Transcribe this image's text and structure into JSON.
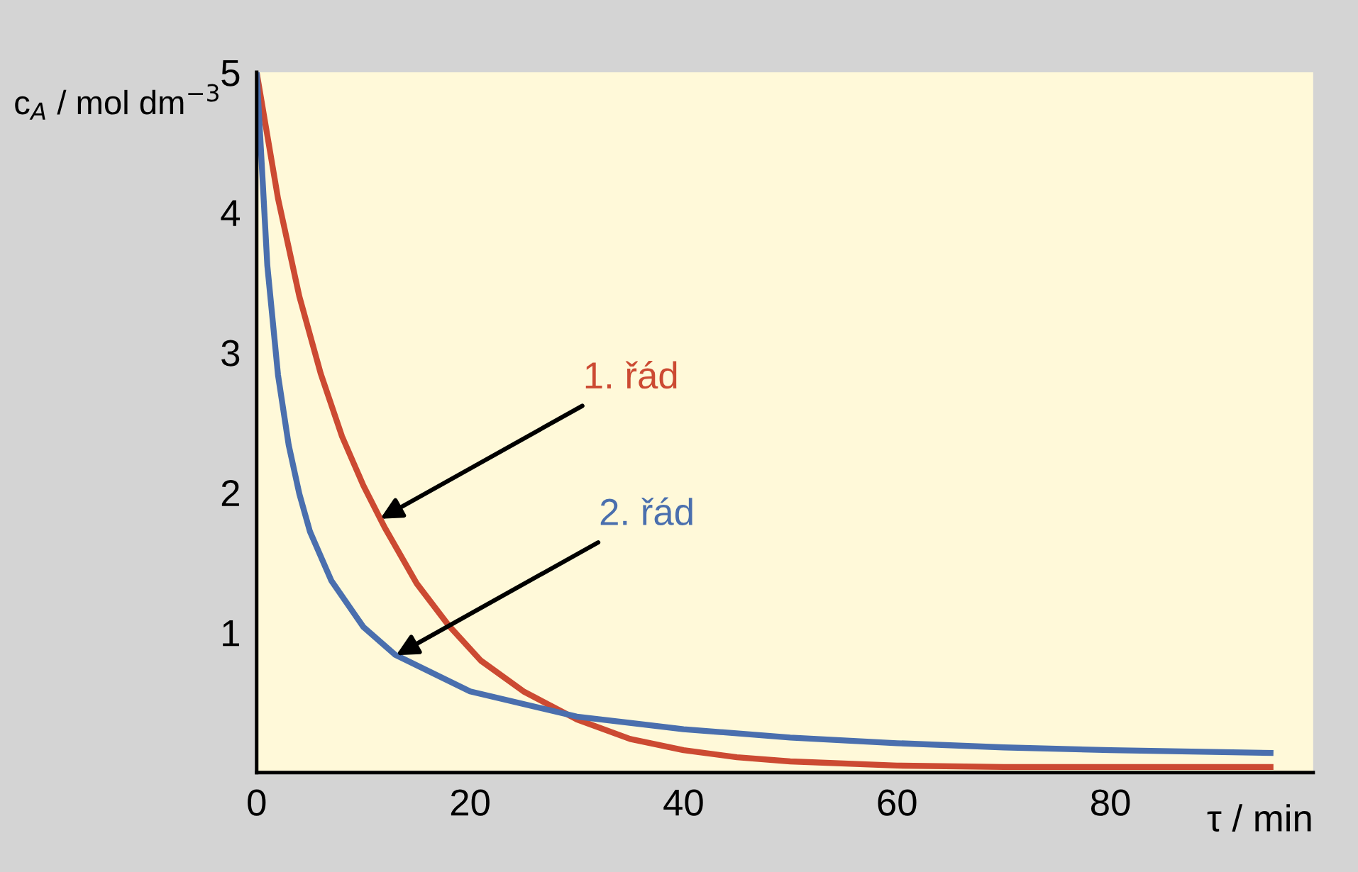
{
  "chart_data": {
    "type": "line",
    "xlabel": "τ / min",
    "ylabel": "c$_{A}$ / mol dm$^{−3}$",
    "xlim": [
      0,
      99
    ],
    "ylim": [
      0,
      5
    ],
    "xticks": [
      0,
      20,
      40,
      60,
      80
    ],
    "yticks": [
      1,
      2,
      3,
      4,
      5
    ],
    "grid": false,
    "series": [
      {
        "name": "1. řád",
        "color": "#cc4a32",
        "x": [
          0,
          2,
          4,
          6,
          8,
          10,
          12,
          15,
          18,
          21,
          25,
          30,
          35,
          40,
          45,
          50,
          60,
          70,
          80,
          95
        ],
        "values": [
          5,
          4.1,
          3.4,
          2.85,
          2.4,
          2.05,
          1.75,
          1.35,
          1.05,
          0.8,
          0.58,
          0.38,
          0.24,
          0.16,
          0.11,
          0.08,
          0.05,
          0.04,
          0.04,
          0.04
        ]
      },
      {
        "name": "2. řád",
        "color": "#4a6fae",
        "x": [
          0,
          1,
          2,
          3,
          4,
          5,
          7,
          10,
          13,
          20,
          30,
          40,
          50,
          60,
          70,
          80,
          95
        ],
        "values": [
          5,
          3.62,
          2.84,
          2.34,
          1.99,
          1.72,
          1.37,
          1.04,
          0.84,
          0.58,
          0.4,
          0.31,
          0.25,
          0.21,
          0.18,
          0.16,
          0.14
        ]
      }
    ]
  }
}
